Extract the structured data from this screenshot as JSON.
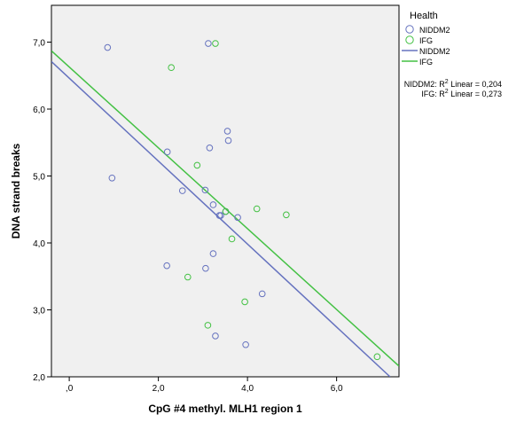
{
  "chart_data": {
    "type": "scatter",
    "xlabel": "CpG #4 methyl. MLH1 region 1",
    "ylabel": "DNA strand breaks",
    "xlim": [
      -0.4,
      7.4
    ],
    "ylim": [
      2.0,
      7.55
    ],
    "xticks": [
      0,
      2,
      4,
      6
    ],
    "xtick_labels": [
      ",0",
      "2,0",
      "4,0",
      "6,0"
    ],
    "yticks": [
      2,
      3,
      4,
      5,
      6,
      7
    ],
    "ytick_labels": [
      "2,0",
      "3,0",
      "4,0",
      "5,0",
      "6,0",
      "7,0"
    ],
    "grid": false,
    "background_color": "#f0f0f0",
    "legend": {
      "title": "Health",
      "placement": "right",
      "marker_entries": [
        "NIDDM2",
        "IFG"
      ],
      "line_entries": [
        "NIDDM2",
        "IFG"
      ]
    },
    "annotations": [
      {
        "prefix": "NIDDM2: R",
        "sup": "2",
        "suffix": " Linear = 0,204"
      },
      {
        "prefix": "IFG: R",
        "sup": "2",
        "suffix": " Linear = 0,273"
      }
    ],
    "series": [
      {
        "name": "NIDDM2",
        "color": "#6673bf",
        "marker": "open-circle",
        "x": [
          0.86,
          3.12,
          0.96,
          2.2,
          3.15,
          3.55,
          3.57,
          2.54,
          3.05,
          3.23,
          3.37,
          3.4,
          3.51,
          3.78,
          2.19,
          3.06,
          3.23,
          4.33,
          3.28,
          3.96
        ],
        "y": [
          6.92,
          6.98,
          4.97,
          5.36,
          5.42,
          5.67,
          5.53,
          4.78,
          4.79,
          4.57,
          4.41,
          4.41,
          4.47,
          4.38,
          3.66,
          3.62,
          3.84,
          3.24,
          2.61,
          2.48
        ]
      },
      {
        "name": "IFG",
        "color": "#44c144",
        "marker": "open-circle",
        "x": [
          3.28,
          2.29,
          2.87,
          4.21,
          3.51,
          4.87,
          3.65,
          2.66,
          3.94,
          3.11,
          6.91
        ],
        "y": [
          6.98,
          6.62,
          5.16,
          4.51,
          4.47,
          4.42,
          4.06,
          3.49,
          3.12,
          2.77,
          2.3
        ]
      }
    ],
    "fit_lines": [
      {
        "name": "NIDDM2",
        "color": "#6673bf",
        "x": [
          -0.4,
          7.2
        ],
        "y": [
          6.71,
          2.0
        ]
      },
      {
        "name": "IFG",
        "color": "#44c144",
        "x": [
          -0.4,
          7.4
        ],
        "y": [
          6.87,
          2.16
        ]
      }
    ]
  }
}
